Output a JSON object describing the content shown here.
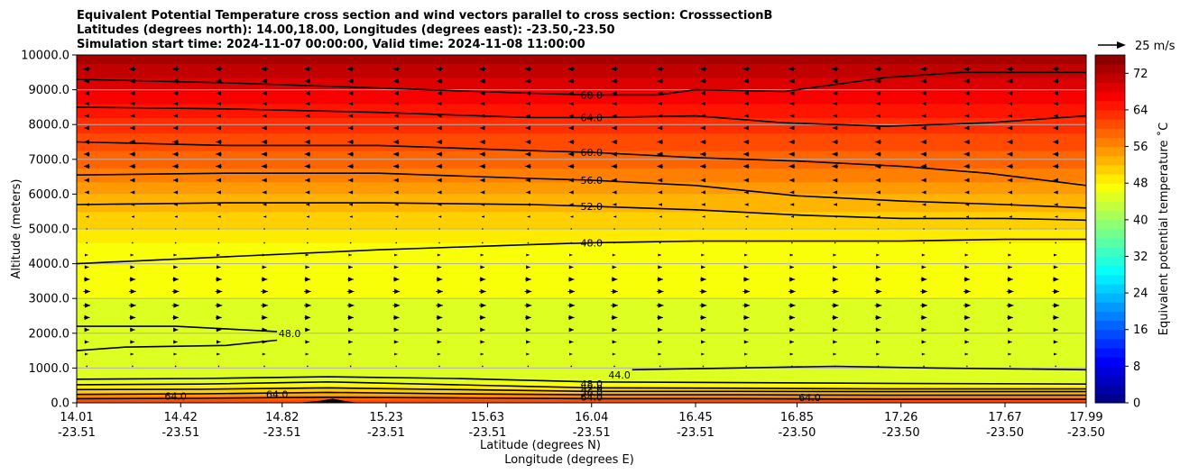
{
  "chart_data": {
    "type": "heatmap",
    "subtype": "filled-contour cross section with wind vectors",
    "title_lines": [
      "Equivalent Potential Temperature cross section and wind vectors parallel to cross section: CrosssectionB",
      "Latitudes (degrees north): 14.00,18.00, Longitudes (degrees east): -23.50,-23.50",
      "Simulation start time: 2024-11-07 00:00:00, Valid time: 2024-11-08 11:00:00"
    ],
    "xlabel_lat": "Latitude (degrees N)",
    "xlabel_lon": "Longitude (degrees E)",
    "ylabel": "Altitude (meters)",
    "xlim": [
      14.01,
      17.99
    ],
    "ylim": [
      0,
      10000
    ],
    "x_ticks": [
      {
        "lat": "14.01",
        "lon": "-23.51",
        "value": 14.01
      },
      {
        "lat": "14.42",
        "lon": "-23.51",
        "value": 14.42
      },
      {
        "lat": "14.82",
        "lon": "-23.51",
        "value": 14.82
      },
      {
        "lat": "15.23",
        "lon": "-23.51",
        "value": 15.23
      },
      {
        "lat": "15.63",
        "lon": "-23.51",
        "value": 15.63
      },
      {
        "lat": "16.04",
        "lon": "-23.51",
        "value": 16.04
      },
      {
        "lat": "16.45",
        "lon": "-23.51",
        "value": 16.45
      },
      {
        "lat": "16.85",
        "lon": "-23.50",
        "value": 16.85
      },
      {
        "lat": "17.26",
        "lon": "-23.50",
        "value": 17.26
      },
      {
        "lat": "17.67",
        "lon": "-23.50",
        "value": 17.67
      },
      {
        "lat": "17.99",
        "lon": "-23.50",
        "value": 17.99
      }
    ],
    "y_ticks": [
      "0.0",
      "1000.0",
      "2000.0",
      "3000.0",
      "4000.0",
      "5000.0",
      "6000.0",
      "7000.0",
      "8000.0",
      "9000.0",
      "10000.0"
    ],
    "y_tick_values": [
      0,
      1000,
      2000,
      3000,
      4000,
      5000,
      6000,
      7000,
      8000,
      9000,
      10000
    ],
    "grid": "horizontal",
    "colorbar": {
      "label": "Equivalent potential temperature ˚C",
      "range": [
        0,
        76
      ],
      "tick_labels": [
        "0",
        "8",
        "16",
        "24",
        "32",
        "40",
        "48",
        "56",
        "64",
        "72"
      ],
      "tick_values": [
        0,
        8,
        16,
        24,
        32,
        40,
        48,
        56,
        64,
        72
      ],
      "colormap": "jet"
    },
    "wind_reference": {
      "label": "25 m/s",
      "speed": 25
    },
    "theta_e_profile": [
      {
        "z": 0,
        "value": 62
      },
      {
        "z": 150,
        "value": 58
      },
      {
        "z": 300,
        "value": 52
      },
      {
        "z": 600,
        "value": 46
      },
      {
        "z": 1000,
        "value": 45
      },
      {
        "z": 1500,
        "value": 45
      },
      {
        "z": 2000,
        "value": 45.5
      },
      {
        "z": 3000,
        "value": 46
      },
      {
        "z": 4000,
        "value": 47
      },
      {
        "z": 4600,
        "value": 48
      },
      {
        "z": 5000,
        "value": 50
      },
      {
        "z": 5500,
        "value": 52
      },
      {
        "z": 6000,
        "value": 54
      },
      {
        "z": 6500,
        "value": 57
      },
      {
        "z": 7000,
        "value": 59
      },
      {
        "z": 7500,
        "value": 61
      },
      {
        "z": 8000,
        "value": 63
      },
      {
        "z": 8500,
        "value": 65.5
      },
      {
        "z": 9000,
        "value": 68
      },
      {
        "z": 9500,
        "value": 71
      },
      {
        "z": 10000,
        "value": 73
      }
    ],
    "contours": [
      {
        "label": "68.0",
        "points": [
          [
            14.01,
            9300
          ],
          [
            14.6,
            9200
          ],
          [
            15.2,
            9050
          ],
          [
            15.8,
            8900
          ],
          [
            16.04,
            8850
          ],
          [
            16.3,
            8850
          ],
          [
            16.45,
            9000
          ],
          [
            16.8,
            8950
          ],
          [
            17.2,
            9350
          ],
          [
            17.5,
            9500
          ],
          [
            17.99,
            9500
          ]
        ]
      },
      {
        "label": "64.0",
        "points": [
          [
            14.01,
            8500
          ],
          [
            14.6,
            8450
          ],
          [
            15.2,
            8350
          ],
          [
            15.8,
            8200
          ],
          [
            16.04,
            8200
          ],
          [
            16.45,
            8250
          ],
          [
            16.8,
            8050
          ],
          [
            17.2,
            7950
          ],
          [
            17.6,
            8050
          ],
          [
            17.99,
            8250
          ]
        ]
      },
      {
        "label": "60.0",
        "points": [
          [
            14.01,
            7500
          ],
          [
            14.6,
            7400
          ],
          [
            15.2,
            7400
          ],
          [
            15.8,
            7250
          ],
          [
            16.04,
            7200
          ],
          [
            16.45,
            7050
          ],
          [
            16.85,
            6950
          ],
          [
            17.26,
            6800
          ],
          [
            17.6,
            6600
          ],
          [
            17.99,
            6250
          ]
        ]
      },
      {
        "label": "56.0",
        "points": [
          [
            14.01,
            6550
          ],
          [
            14.6,
            6600
          ],
          [
            15.2,
            6600
          ],
          [
            15.8,
            6450
          ],
          [
            16.04,
            6400
          ],
          [
            16.45,
            6250
          ],
          [
            16.85,
            5950
          ],
          [
            17.26,
            5800
          ],
          [
            17.67,
            5700
          ],
          [
            17.99,
            5600
          ]
        ]
      },
      {
        "label": "52.0",
        "points": [
          [
            14.01,
            5700
          ],
          [
            14.6,
            5750
          ],
          [
            15.2,
            5750
          ],
          [
            15.8,
            5700
          ],
          [
            16.04,
            5650
          ],
          [
            16.45,
            5550
          ],
          [
            16.85,
            5400
          ],
          [
            17.26,
            5300
          ],
          [
            17.67,
            5300
          ],
          [
            17.99,
            5250
          ]
        ]
      },
      {
        "label": "48.0",
        "points": [
          [
            14.01,
            4000
          ],
          [
            14.6,
            4200
          ],
          [
            15.2,
            4400
          ],
          [
            15.8,
            4550
          ],
          [
            16.04,
            4600
          ],
          [
            16.45,
            4650
          ],
          [
            16.85,
            4650
          ],
          [
            17.26,
            4650
          ],
          [
            17.67,
            4700
          ],
          [
            17.99,
            4700
          ]
        ]
      },
      {
        "label": "48.0",
        "points": [
          [
            14.01,
            2200
          ],
          [
            14.4,
            2200
          ],
          [
            14.8,
            2050
          ]
        ]
      },
      {
        "label": "48.0",
        "points": [
          [
            14.01,
            1500
          ],
          [
            14.2,
            1600
          ],
          [
            14.6,
            1650
          ],
          [
            14.8,
            1800
          ]
        ]
      },
      {
        "label": "44.0",
        "points": [
          [
            16.2,
            950
          ],
          [
            16.6,
            1000
          ],
          [
            17.0,
            1050
          ],
          [
            17.4,
            1000
          ],
          [
            17.99,
            950
          ]
        ]
      },
      {
        "label": "48.0",
        "points": [
          [
            14.01,
            680
          ],
          [
            14.5,
            700
          ],
          [
            15.0,
            750
          ],
          [
            15.5,
            700
          ],
          [
            16.04,
            600
          ],
          [
            16.6,
            580
          ],
          [
            17.2,
            560
          ],
          [
            17.99,
            540
          ]
        ]
      },
      {
        "label": "52.0",
        "points": [
          [
            14.01,
            520
          ],
          [
            14.5,
            540
          ],
          [
            15.0,
            600
          ],
          [
            15.5,
            520
          ],
          [
            16.04,
            430
          ],
          [
            16.6,
            420
          ],
          [
            17.2,
            400
          ],
          [
            17.99,
            400
          ]
        ]
      },
      {
        "label": "56.0",
        "points": [
          [
            14.01,
            380
          ],
          [
            14.5,
            390
          ],
          [
            15.0,
            430
          ],
          [
            15.5,
            380
          ],
          [
            16.04,
            330
          ],
          [
            16.6,
            330
          ],
          [
            17.2,
            320
          ],
          [
            17.99,
            320
          ]
        ]
      },
      {
        "label": "60.0",
        "points": [
          [
            14.01,
            240
          ],
          [
            14.5,
            260
          ],
          [
            15.0,
            300
          ],
          [
            15.5,
            260
          ],
          [
            16.04,
            230
          ],
          [
            16.6,
            230
          ],
          [
            17.2,
            220
          ],
          [
            17.99,
            220
          ]
        ]
      },
      {
        "label": "64.0",
        "points": [
          [
            14.01,
            120
          ],
          [
            14.5,
            130
          ],
          [
            15.0,
            160
          ],
          [
            15.5,
            140
          ],
          [
            16.04,
            120
          ],
          [
            16.6,
            120
          ],
          [
            17.2,
            100
          ],
          [
            17.99,
            100
          ]
        ]
      }
    ],
    "contour_label_positions": [
      {
        "text": "68.0",
        "x": 16.04,
        "z": 8850
      },
      {
        "text": "64.0",
        "x": 16.04,
        "z": 8200
      },
      {
        "text": "60.0",
        "x": 16.04,
        "z": 7200
      },
      {
        "text": "56.0",
        "x": 16.04,
        "z": 6400
      },
      {
        "text": "52.0",
        "x": 16.04,
        "z": 5650
      },
      {
        "text": "48.0",
        "x": 16.04,
        "z": 4600
      },
      {
        "text": "48.0",
        "x": 14.85,
        "z": 2000
      },
      {
        "text": "44.0",
        "x": 16.15,
        "z": 800
      },
      {
        "text": "48.0",
        "x": 16.04,
        "z": 540
      },
      {
        "text": "52.0",
        "x": 16.04,
        "z": 420
      },
      {
        "text": "56.0",
        "x": 16.04,
        "z": 300
      },
      {
        "text": "64.0",
        "x": 16.04,
        "z": 170
      },
      {
        "text": "64.0",
        "x": 14.4,
        "z": 200
      },
      {
        "text": "64.0",
        "x": 14.8,
        "z": 250
      },
      {
        "text": "64.0",
        "x": 16.9,
        "z": 150
      }
    ],
    "wind_vectors": {
      "rows": [
        {
          "z": 9600,
          "u": -3.5
        },
        {
          "z": 9250,
          "u": -3
        },
        {
          "z": 8900,
          "u": -2.5
        },
        {
          "z": 8600,
          "u": -2
        },
        {
          "z": 8250,
          "u": -2
        },
        {
          "z": 7900,
          "u": -2.5
        },
        {
          "z": 7500,
          "u": -3
        },
        {
          "z": 7150,
          "u": -3
        },
        {
          "z": 6800,
          "u": -3
        },
        {
          "z": 6400,
          "u": -2.5
        },
        {
          "z": 6050,
          "u": -2
        },
        {
          "z": 5700,
          "u": -1.5
        },
        {
          "z": 5350,
          "u": -0.7
        },
        {
          "z": 5000,
          "u": -0.2
        },
        {
          "z": 4600,
          "u": 0.3
        },
        {
          "z": 4250,
          "u": 1
        },
        {
          "z": 3900,
          "u": 2
        },
        {
          "z": 3550,
          "u": 3
        },
        {
          "z": 3200,
          "u": 3.5
        },
        {
          "z": 2800,
          "u": 3.5
        },
        {
          "z": 2450,
          "u": 3
        },
        {
          "z": 2100,
          "u": 2.5
        },
        {
          "z": 1750,
          "u": 2
        },
        {
          "z": 1400,
          "u": 1
        },
        {
          "z": 1050,
          "u": 0.5
        }
      ],
      "x_positions": [
        14.05,
        14.23,
        14.4,
        14.57,
        14.75,
        14.92,
        15.09,
        15.27,
        15.44,
        15.61,
        15.79,
        15.96,
        16.13,
        16.31,
        16.48,
        16.65,
        16.83,
        17.0,
        17.17,
        17.35,
        17.52,
        17.69,
        17.87
      ]
    },
    "terrain": [
      {
        "x": 14.88,
        "z": 0
      },
      {
        "x": 14.97,
        "z": 60
      },
      {
        "x": 15.02,
        "z": 120
      },
      {
        "x": 15.06,
        "z": 60
      },
      {
        "x": 15.12,
        "z": 0
      }
    ]
  }
}
